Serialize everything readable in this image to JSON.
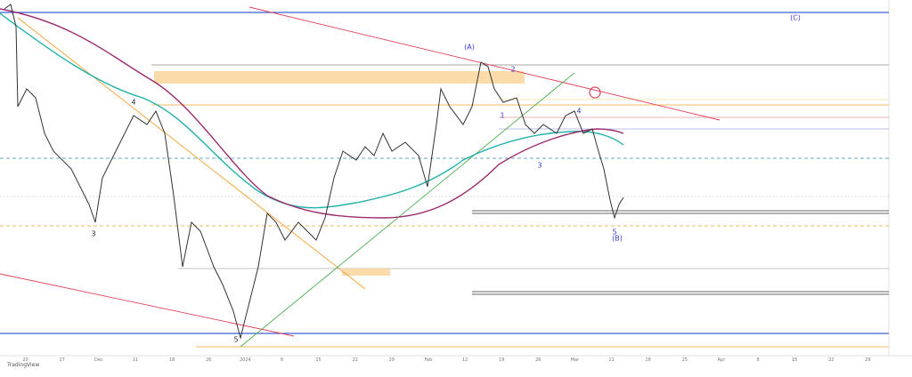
{
  "wave_labels": {
    "a": "(A)",
    "b": "(B)",
    "c": "(C)",
    "minor_1": "1",
    "minor_2": "2",
    "minor_3": "3",
    "minor_4": "4",
    "minor_5": "5",
    "prior_3": "3",
    "prior_4": "4",
    "prior_5": "5"
  },
  "x_axis": [
    "20",
    "27",
    "Dec",
    "11",
    "18",
    "26",
    "2024",
    "8",
    "15",
    "22",
    "29",
    "Feb",
    "12",
    "19",
    "26",
    "Mar",
    "11",
    "18",
    "25",
    "Apr",
    "8",
    "15",
    "22",
    "29"
  ],
  "footer": {
    "brand": "TradingView"
  }
}
